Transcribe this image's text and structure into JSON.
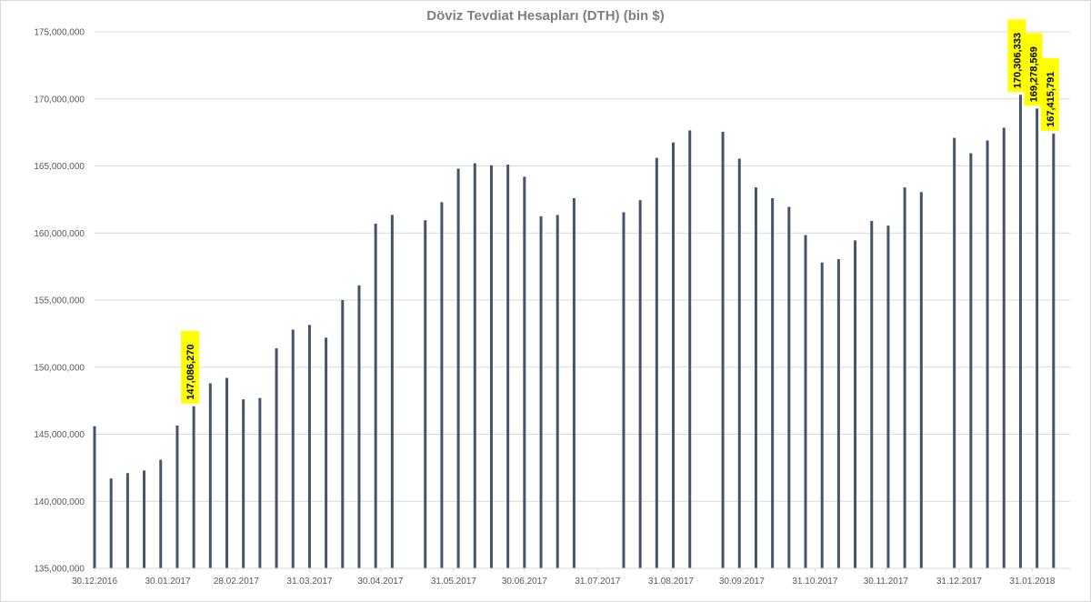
{
  "chart_data": {
    "type": "bar",
    "title": "Döviz Tevdiat Hesapları (DTH) (bin $)",
    "xlabel": "",
    "ylabel": "",
    "ylim": [
      135000000,
      175000000
    ],
    "yticks": [
      135000000,
      140000000,
      145000000,
      150000000,
      155000000,
      160000000,
      165000000,
      170000000,
      175000000
    ],
    "ytick_labels": [
      "135,000,000",
      "140,000,000",
      "145,000,000",
      "150,000,000",
      "155,000,000",
      "160,000,000",
      "165,000,000",
      "170,000,000",
      "175,000,000"
    ],
    "x_range": [
      "2016-12-30",
      "2018-02-16"
    ],
    "xtick_dates": [
      "2016-12-30",
      "2017-01-30",
      "2017-02-28",
      "2017-03-31",
      "2017-04-30",
      "2017-05-31",
      "2017-06-30",
      "2017-07-31",
      "2017-08-31",
      "2017-09-30",
      "2017-10-31",
      "2017-11-30",
      "2017-12-31",
      "2018-01-31"
    ],
    "xtick_labels": [
      "30.12.2016",
      "30.01.2017",
      "28.02.2017",
      "31.03.2017",
      "30.04.2017",
      "31.05.2017",
      "30.06.2017",
      "31.07.2017",
      "31.08.2017",
      "30.09.2017",
      "31.10.2017",
      "30.11.2017",
      "31.12.2017",
      "31.01.2018"
    ],
    "grid": true,
    "bar_color": "#44546a",
    "label_background": "#ffff00",
    "points": [
      {
        "date": "2016-12-30",
        "value": 145600000
      },
      {
        "date": "2017-01-06",
        "value": 141700000
      },
      {
        "date": "2017-01-13",
        "value": 142100000
      },
      {
        "date": "2017-01-20",
        "value": 142300000
      },
      {
        "date": "2017-01-27",
        "value": 143100000
      },
      {
        "date": "2017-02-03",
        "value": 145650000
      },
      {
        "date": "2017-02-10",
        "value": 147086270,
        "label": "147,086,270"
      },
      {
        "date": "2017-02-17",
        "value": 148800000
      },
      {
        "date": "2017-02-24",
        "value": 149200000
      },
      {
        "date": "2017-03-03",
        "value": 147600000
      },
      {
        "date": "2017-03-10",
        "value": 147700000
      },
      {
        "date": "2017-03-17",
        "value": 151400000
      },
      {
        "date": "2017-03-24",
        "value": 152800000
      },
      {
        "date": "2017-03-31",
        "value": 153150000
      },
      {
        "date": "2017-04-07",
        "value": 152200000
      },
      {
        "date": "2017-04-14",
        "value": 155000000
      },
      {
        "date": "2017-04-21",
        "value": 156100000
      },
      {
        "date": "2017-04-28",
        "value": 160700000
      },
      {
        "date": "2017-05-05",
        "value": 161350000
      },
      {
        "date": "2017-05-19",
        "value": 160950000
      },
      {
        "date": "2017-05-26",
        "value": 162300000
      },
      {
        "date": "2017-06-02",
        "value": 164800000
      },
      {
        "date": "2017-06-09",
        "value": 165200000
      },
      {
        "date": "2017-06-16",
        "value": 165050000
      },
      {
        "date": "2017-06-23",
        "value": 165100000
      },
      {
        "date": "2017-06-30",
        "value": 164200000
      },
      {
        "date": "2017-07-07",
        "value": 161250000
      },
      {
        "date": "2017-07-14",
        "value": 161350000
      },
      {
        "date": "2017-07-21",
        "value": 162600000
      },
      {
        "date": "2017-08-11",
        "value": 161550000
      },
      {
        "date": "2017-08-18",
        "value": 162450000
      },
      {
        "date": "2017-08-25",
        "value": 165600000
      },
      {
        "date": "2017-09-01",
        "value": 166750000
      },
      {
        "date": "2017-09-08",
        "value": 167650000
      },
      {
        "date": "2017-09-22",
        "value": 167550000
      },
      {
        "date": "2017-09-29",
        "value": 165550000
      },
      {
        "date": "2017-10-06",
        "value": 163400000
      },
      {
        "date": "2017-10-13",
        "value": 162600000
      },
      {
        "date": "2017-10-20",
        "value": 161950000
      },
      {
        "date": "2017-10-27",
        "value": 159850000
      },
      {
        "date": "2017-11-03",
        "value": 157800000
      },
      {
        "date": "2017-11-10",
        "value": 158050000
      },
      {
        "date": "2017-11-17",
        "value": 159450000
      },
      {
        "date": "2017-11-24",
        "value": 160900000
      },
      {
        "date": "2017-12-01",
        "value": 160550000
      },
      {
        "date": "2017-12-08",
        "value": 163400000
      },
      {
        "date": "2017-12-15",
        "value": 163050000
      },
      {
        "date": "2017-12-29",
        "value": 167100000
      },
      {
        "date": "2018-01-05",
        "value": 165950000
      },
      {
        "date": "2018-01-12",
        "value": 166900000
      },
      {
        "date": "2018-01-19",
        "value": 167850000
      },
      {
        "date": "2018-01-26",
        "value": 170306333,
        "label": "170,306,333"
      },
      {
        "date": "2018-02-02",
        "value": 169278569,
        "label": "169,278,569"
      },
      {
        "date": "2018-02-09",
        "value": 167415791,
        "label": "167,415,791"
      }
    ]
  }
}
